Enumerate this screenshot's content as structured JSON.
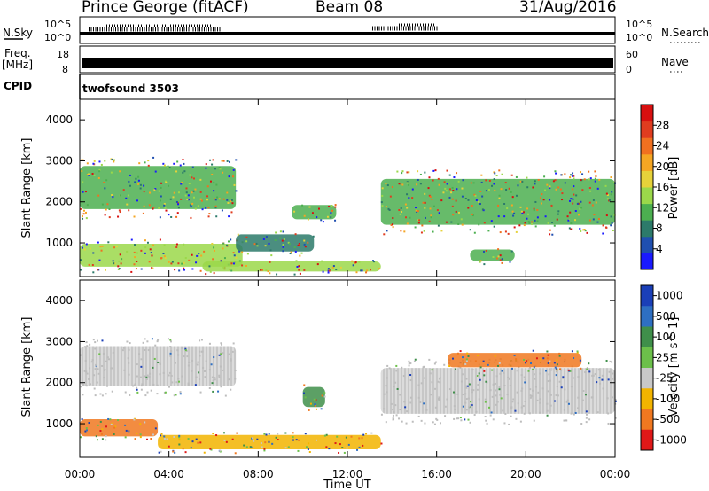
{
  "header": {
    "title": "Prince George (fitACF)",
    "beam": "Beam 08",
    "date": "31/Aug/2016"
  },
  "top_panels": {
    "nsky_label": "N.Sky",
    "nsearch_label": "N.Search",
    "freq_label_1": "Freq.",
    "freq_label_2": "[MHz]",
    "nave_label": "Nave",
    "cpid_label": "CPID",
    "cpid_value": "twofsound 3503",
    "nsky_ticks": [
      "10^5",
      "10^0"
    ],
    "nsearch_ticks": [
      "10^5",
      "10^0"
    ],
    "freq_ticks": [
      "18",
      "8"
    ],
    "nave_ticks": [
      "60",
      "0"
    ]
  },
  "chart_data": [
    {
      "type": "heatmap",
      "title": "",
      "xlabel": "",
      "ylabel": "Slant Range [km]",
      "x_range": [
        0,
        24
      ],
      "y_range": [
        180,
        4500
      ],
      "y_ticks": [
        "1000",
        "2000",
        "3000",
        "4000"
      ],
      "colorbar": {
        "label": "Power [dB]",
        "ticks": [
          "4",
          "8",
          "12",
          "16",
          "20",
          "24",
          "28"
        ],
        "colors": [
          "#1a1aff",
          "#1f4fb0",
          "#2c7a6a",
          "#4caf50",
          "#9bd84a",
          "#e6d23a",
          "#f5a623",
          "#f07020",
          "#e03c1f",
          "#d81010"
        ]
      },
      "regions": [
        {
          "x": [
            0.0,
            7.3
          ],
          "y": [
            300,
            1100
          ],
          "level": "high"
        },
        {
          "x": [
            0.0,
            7.0
          ],
          "y": [
            1600,
            3100
          ],
          "level": "medium"
        },
        {
          "x": [
            5.5,
            13.5
          ],
          "y": [
            250,
            600
          ],
          "level": "high"
        },
        {
          "x": [
            7.0,
            10.5
          ],
          "y": [
            700,
            1300
          ],
          "level": "low"
        },
        {
          "x": [
            9.5,
            11.5
          ],
          "y": [
            1500,
            2000
          ],
          "level": "medium"
        },
        {
          "x": [
            13.5,
            24.0
          ],
          "y": [
            1200,
            2800
          ],
          "level": "medium"
        },
        {
          "x": [
            17.5,
            19.5
          ],
          "y": [
            500,
            900
          ],
          "level": "medium"
        }
      ]
    },
    {
      "type": "heatmap",
      "title": "",
      "xlabel": "Time UT",
      "ylabel": "Slant Range [km]",
      "x_range": [
        0,
        24
      ],
      "y_range": [
        180,
        4500
      ],
      "x_ticks": [
        "00:00",
        "04:00",
        "08:00",
        "12:00",
        "16:00",
        "20:00",
        "00:00"
      ],
      "y_ticks": [
        "1000",
        "2000",
        "3000",
        "4000"
      ],
      "colorbar": {
        "label": "Velocity [m s^-1]",
        "ticks": [
          "1000",
          "500",
          "100",
          "25",
          "-25",
          "-100",
          "-500",
          "-1000"
        ],
        "colors": [
          "#1a3fb8",
          "#2e6fc2",
          "#3f8f4a",
          "#6cc04a",
          "#c8c8c8",
          "#f2b400",
          "#f07820",
          "#e01818"
        ]
      },
      "regions": [
        {
          "x": [
            0.0,
            7.0
          ],
          "y": [
            1700,
            3100
          ],
          "velocity": "ground-scatter"
        },
        {
          "x": [
            0.0,
            3.5
          ],
          "y": [
            600,
            1200
          ],
          "velocity": "-500"
        },
        {
          "x": [
            3.5,
            13.5
          ],
          "y": [
            300,
            800
          ],
          "velocity": "-100"
        },
        {
          "x": [
            10.0,
            11.0
          ],
          "y": [
            1300,
            2000
          ],
          "velocity": "100"
        },
        {
          "x": [
            13.5,
            24.0
          ],
          "y": [
            1000,
            2600
          ],
          "velocity": "ground-scatter"
        },
        {
          "x": [
            16.5,
            22.5
          ],
          "y": [
            2300,
            2800
          ],
          "velocity": "-500"
        }
      ]
    }
  ],
  "colors": {
    "axis": "#000000",
    "ground_scatter": "#c8c8c8",
    "top_series": "#000000"
  }
}
